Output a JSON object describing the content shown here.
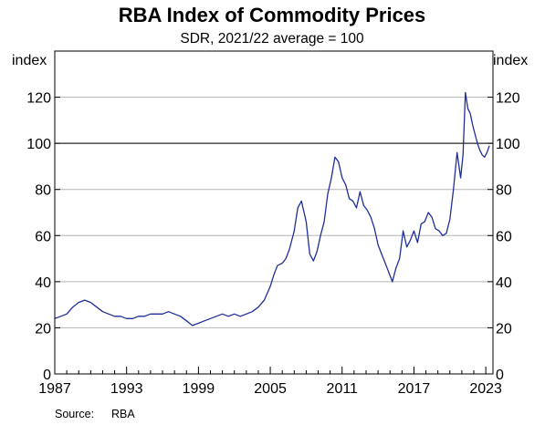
{
  "chart_data": {
    "type": "line",
    "title": "RBA Index of Commodity Prices",
    "subtitle": "SDR, 2021/22 average = 100",
    "ylabel_left": "index",
    "ylabel_right": "index",
    "ylim": [
      0,
      140
    ],
    "xlim": [
      1987,
      2023.6
    ],
    "y_ticks": [
      "0",
      "20",
      "40",
      "60",
      "80",
      "100",
      "120"
    ],
    "x_ticks": [
      "1987",
      "1993",
      "1999",
      "2005",
      "2011",
      "2017",
      "2023"
    ],
    "reference_line": 100,
    "grid": true,
    "line_color": "#1f2f9a",
    "source_label": "Source:",
    "source": "RBA",
    "series": [
      {
        "x": [
          1987.0,
          1987.5,
          1988.0,
          1988.5,
          1989.0,
          1989.5,
          1990.0,
          1990.5,
          1991.0,
          1991.5,
          1992.0,
          1992.5,
          1993.0,
          1993.5,
          1994.0,
          1994.5,
          1995.0,
          1995.5,
          1996.0,
          1996.5,
          1997.0,
          1997.5,
          1998.0,
          1998.5,
          1999.0,
          1999.5,
          2000.0,
          2000.5,
          2001.0,
          2001.5,
          2002.0,
          2002.5,
          2003.0,
          2003.5,
          2004.0,
          2004.5,
          2005.0,
          2005.3,
          2005.6,
          2006.0,
          2006.3,
          2006.6,
          2007.0,
          2007.3,
          2007.6,
          2008.0,
          2008.3,
          2008.6,
          2008.9,
          2009.2,
          2009.5,
          2009.8,
          2010.1,
          2010.4,
          2010.7,
          2011.0,
          2011.3,
          2011.6,
          2011.9,
          2012.2,
          2012.5,
          2012.8,
          2013.1,
          2013.4,
          2013.7,
          2014.0,
          2014.3,
          2014.6,
          2014.9,
          2015.2,
          2015.5,
          2015.8,
          2016.1,
          2016.4,
          2016.7,
          2017.0,
          2017.3,
          2017.6,
          2017.9,
          2018.2,
          2018.5,
          2018.8,
          2019.1,
          2019.4,
          2019.7,
          2020.0,
          2020.3,
          2020.6,
          2020.9,
          2021.1,
          2021.3,
          2021.5,
          2021.7,
          2021.9,
          2022.1,
          2022.3,
          2022.5,
          2022.7,
          2022.9,
          2023.1,
          2023.3
        ],
        "values": [
          24,
          25,
          26,
          29,
          31,
          32,
          31,
          29,
          27,
          26,
          25,
          25,
          24,
          24,
          25,
          25,
          26,
          26,
          26,
          27,
          26,
          25,
          23,
          21,
          22,
          23,
          24,
          25,
          26,
          25,
          26,
          25,
          26,
          27,
          29,
          32,
          38,
          43,
          47,
          48,
          50,
          54,
          62,
          72,
          75,
          66,
          52,
          49,
          53,
          60,
          66,
          78,
          85,
          94,
          92,
          85,
          82,
          76,
          75,
          72,
          79,
          73,
          71,
          68,
          63,
          56,
          52,
          48,
          44,
          40,
          46,
          50,
          62,
          55,
          58,
          62,
          57,
          65,
          66,
          70,
          68,
          63,
          62,
          60,
          61,
          67,
          80,
          96,
          85,
          95,
          122,
          115,
          113,
          108,
          104,
          100,
          97,
          95,
          94,
          96,
          99
        ]
      }
    ]
  }
}
